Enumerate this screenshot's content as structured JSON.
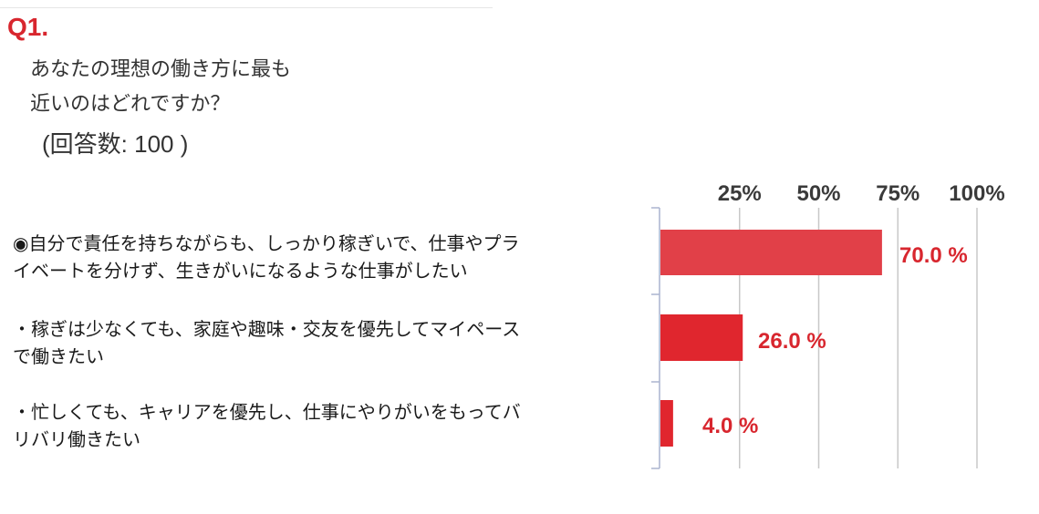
{
  "question": {
    "number": "Q1.",
    "text_line1": "あなたの理想の働き方に最も",
    "text_line2": "近いのはどれですか？",
    "responses": "(回答数: 100 )"
  },
  "colors": {
    "accent": "#d8262e",
    "bar_top": "#e14048",
    "bar": "#e0262e",
    "grid": "#c8c8c8",
    "axis": "#aab4cf"
  },
  "chart_data": {
    "type": "bar",
    "orientation": "horizontal",
    "categories": [
      "◉自分で責任を持ちながらも、しっかり稼ぎいで、仕事やプライベートを分けず、生きがいになるような仕事がしたい",
      "・稼ぎは少なくても、家庭や趣味・交友を優先してマイペースで働きたい",
      "・忙しくても、キャリアを優先し、仕事にやりがいをもってバリバリ働きたい"
    ],
    "category_lines": [
      [
        "◉自分で責任を持ちながらも、しっかり稼ぎいで、仕事やプラ",
        "イベートを分けず、生きがいになるような仕事がしたい"
      ],
      [
        "・稼ぎは少なくても、家庭や趣味・交友を優先してマイペース",
        "で働きたい"
      ],
      [
        "・忙しくても、キャリアを優先し、仕事にやりがいをもってバ",
        "リバリ働きたい"
      ]
    ],
    "values": [
      70.0,
      26.0,
      4.0
    ],
    "value_labels": [
      "70.0 %",
      "26.0 %",
      "4.0 %"
    ],
    "ticks": [
      "25%",
      "50%",
      "75%",
      "100%"
    ],
    "tick_values": [
      25,
      50,
      75,
      100
    ],
    "xlim": [
      0,
      100
    ],
    "grid": true
  }
}
